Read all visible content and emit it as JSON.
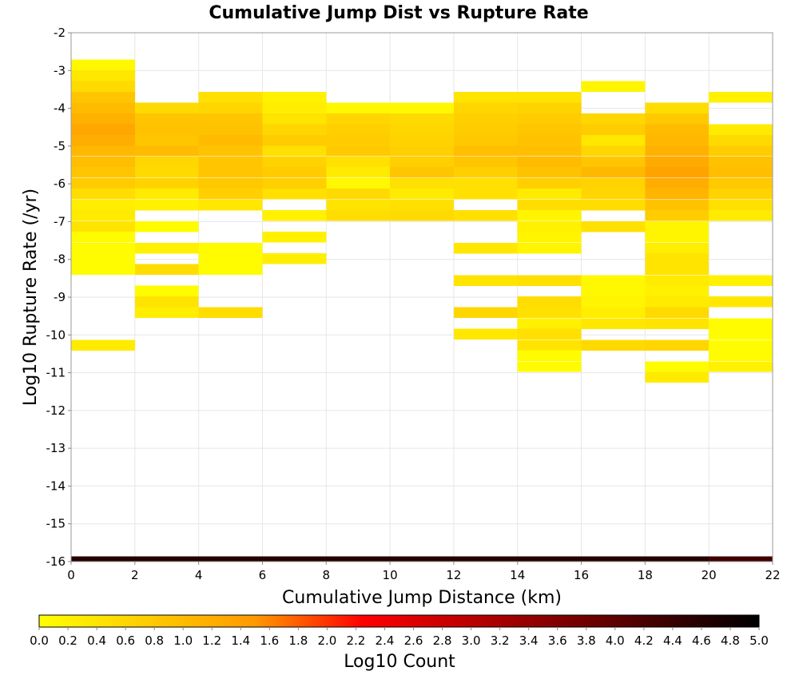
{
  "chart_data": {
    "type": "heatmap",
    "title": "Cumulative Jump Dist vs Rupture Rate",
    "xlabel": "Cumulative Jump Distance (km)",
    "ylabel": "Log10 Rupture Rate (/yr)",
    "xlim": [
      0,
      22
    ],
    "ylim": [
      -16,
      -2
    ],
    "x_ticks": [
      "0",
      "2",
      "4",
      "6",
      "8",
      "10",
      "12",
      "14",
      "16",
      "18",
      "20",
      "22"
    ],
    "y_ticks": [
      "-2",
      "-3",
      "-4",
      "-5",
      "-6",
      "-7",
      "-8",
      "-9",
      "-10",
      "-11",
      "-12",
      "-13",
      "-14",
      "-15",
      "-16"
    ],
    "x_bin_width": 2,
    "y_bin_height": 0.285,
    "grid": true,
    "colorbar": {
      "label": "Log10 Count",
      "range": [
        0,
        5
      ],
      "ticks": [
        "0.0",
        "0.2",
        "0.4",
        "0.6",
        "0.8",
        "1.0",
        "1.2",
        "1.4",
        "1.6",
        "1.8",
        "2.0",
        "2.2",
        "2.4",
        "2.6",
        "2.8",
        "3.0",
        "3.2",
        "3.4",
        "3.6",
        "3.8",
        "4.0",
        "4.2",
        "4.4",
        "4.6",
        "4.8",
        "5.0"
      ],
      "colors": [
        "#ffff00",
        "#ff9900",
        "#ff0000",
        "#000000"
      ]
    },
    "columns": [
      {
        "x": 0,
        "cells": [
          [
            -2.85,
            0.1
          ],
          [
            -3.14,
            0.35
          ],
          [
            -3.42,
            0.55
          ],
          [
            -3.71,
            0.85
          ],
          [
            -3.99,
            1.0
          ],
          [
            -4.28,
            1.15
          ],
          [
            -4.56,
            1.3
          ],
          [
            -4.85,
            1.2
          ],
          [
            -5.13,
            1.05
          ],
          [
            -5.42,
            0.95
          ],
          [
            -5.7,
            0.85
          ],
          [
            -5.99,
            0.75
          ],
          [
            -6.27,
            0.5
          ],
          [
            -6.56,
            0.25
          ],
          [
            -6.84,
            0.3
          ],
          [
            -7.13,
            0.4
          ],
          [
            -7.41,
            0.05
          ],
          [
            -7.7,
            0.05
          ],
          [
            -7.98,
            0.05
          ],
          [
            -8.27,
            0.05
          ],
          [
            -10.27,
            0.3
          ]
        ]
      },
      {
        "x": 2,
        "cells": [
          [
            -3.99,
            0.55
          ],
          [
            -4.28,
            0.85
          ],
          [
            -4.56,
            0.9
          ],
          [
            -4.85,
            0.85
          ],
          [
            -5.13,
            1.0
          ],
          [
            -5.42,
            0.6
          ],
          [
            -5.7,
            0.55
          ],
          [
            -5.99,
            0.65
          ],
          [
            -6.27,
            0.3
          ],
          [
            -6.56,
            0.2
          ],
          [
            -7.13,
            0.05
          ],
          [
            -7.7,
            0.2
          ],
          [
            -8.27,
            0.5
          ],
          [
            -8.84,
            0.05
          ],
          [
            -9.12,
            0.4
          ],
          [
            -9.41,
            0.25
          ]
        ]
      },
      {
        "x": 4,
        "cells": [
          [
            -3.71,
            0.45
          ],
          [
            -3.99,
            0.6
          ],
          [
            -4.28,
            0.85
          ],
          [
            -4.56,
            0.9
          ],
          [
            -4.85,
            1.0
          ],
          [
            -5.13,
            0.9
          ],
          [
            -5.42,
            0.85
          ],
          [
            -5.7,
            0.85
          ],
          [
            -5.99,
            0.8
          ],
          [
            -6.27,
            0.7
          ],
          [
            -6.56,
            0.35
          ],
          [
            -7.7,
            0.05
          ],
          [
            -7.98,
            0.05
          ],
          [
            -8.27,
            0.05
          ],
          [
            -9.41,
            0.5
          ]
        ]
      },
      {
        "x": 6,
        "cells": [
          [
            -3.71,
            0.2
          ],
          [
            -3.99,
            0.25
          ],
          [
            -4.28,
            0.4
          ],
          [
            -4.56,
            0.6
          ],
          [
            -4.85,
            0.75
          ],
          [
            -5.13,
            0.45
          ],
          [
            -5.42,
            0.65
          ],
          [
            -5.7,
            0.75
          ],
          [
            -5.99,
            0.7
          ],
          [
            -6.27,
            0.45
          ],
          [
            -6.84,
            0.2
          ],
          [
            -7.41,
            0.2
          ],
          [
            -7.98,
            0.25
          ]
        ]
      },
      {
        "x": 8,
        "cells": [
          [
            -3.99,
            0.1
          ],
          [
            -4.28,
            0.6
          ],
          [
            -4.56,
            0.7
          ],
          [
            -4.85,
            0.75
          ],
          [
            -5.13,
            0.8
          ],
          [
            -5.42,
            0.45
          ],
          [
            -5.7,
            0.3
          ],
          [
            -5.99,
            0.1
          ],
          [
            -6.27,
            0.55
          ],
          [
            -6.56,
            0.4
          ],
          [
            -6.84,
            0.5
          ]
        ]
      },
      {
        "x": 10,
        "cells": [
          [
            -3.99,
            0.1
          ],
          [
            -4.28,
            0.55
          ],
          [
            -4.56,
            0.6
          ],
          [
            -4.85,
            0.65
          ],
          [
            -5.13,
            0.7
          ],
          [
            -5.42,
            0.7
          ],
          [
            -5.7,
            0.85
          ],
          [
            -5.99,
            0.45
          ],
          [
            -6.27,
            0.3
          ],
          [
            -6.56,
            0.45
          ],
          [
            -6.84,
            0.55
          ]
        ]
      },
      {
        "x": 12,
        "cells": [
          [
            -3.71,
            0.4
          ],
          [
            -3.99,
            0.6
          ],
          [
            -4.28,
            0.7
          ],
          [
            -4.56,
            0.75
          ],
          [
            -4.85,
            0.8
          ],
          [
            -5.13,
            0.95
          ],
          [
            -5.42,
            0.85
          ],
          [
            -5.7,
            0.7
          ],
          [
            -5.99,
            0.45
          ],
          [
            -6.27,
            0.45
          ],
          [
            -6.84,
            0.45
          ],
          [
            -7.7,
            0.35
          ],
          [
            -8.56,
            0.4
          ],
          [
            -9.41,
            0.6
          ],
          [
            -9.98,
            0.35
          ]
        ]
      },
      {
        "x": 14,
        "cells": [
          [
            -3.71,
            0.4
          ],
          [
            -3.99,
            0.65
          ],
          [
            -4.28,
            0.75
          ],
          [
            -4.56,
            0.85
          ],
          [
            -4.85,
            0.9
          ],
          [
            -5.13,
            0.95
          ],
          [
            -5.42,
            1.0
          ],
          [
            -5.7,
            0.9
          ],
          [
            -5.99,
            0.7
          ],
          [
            -6.27,
            0.3
          ],
          [
            -6.56,
            0.5
          ],
          [
            -6.84,
            0.15
          ],
          [
            -7.13,
            0.2
          ],
          [
            -7.41,
            0.15
          ],
          [
            -7.7,
            0.15
          ],
          [
            -8.56,
            0.45
          ],
          [
            -9.12,
            0.5
          ],
          [
            -9.41,
            0.45
          ],
          [
            -9.7,
            0.2
          ],
          [
            -9.98,
            0.45
          ],
          [
            -10.27,
            0.4
          ],
          [
            -10.55,
            0.05
          ],
          [
            -10.84,
            0.05
          ]
        ]
      },
      {
        "x": 16,
        "cells": [
          [
            -3.42,
            0.15
          ],
          [
            -4.28,
            0.6
          ],
          [
            -4.56,
            0.75
          ],
          [
            -4.85,
            0.35
          ],
          [
            -5.13,
            0.6
          ],
          [
            -5.42,
            0.85
          ],
          [
            -5.7,
            1.05
          ],
          [
            -5.99,
            0.65
          ],
          [
            -6.27,
            0.6
          ],
          [
            -6.56,
            0.5
          ],
          [
            -7.13,
            0.45
          ],
          [
            -8.56,
            0.1
          ],
          [
            -8.84,
            0.1
          ],
          [
            -9.12,
            0.15
          ],
          [
            -9.41,
            0.25
          ],
          [
            -9.7,
            0.35
          ],
          [
            -10.27,
            0.55
          ]
        ]
      },
      {
        "x": 18,
        "cells": [
          [
            -3.99,
            0.5
          ],
          [
            -4.28,
            0.8
          ],
          [
            -4.56,
            1.0
          ],
          [
            -4.85,
            1.05
          ],
          [
            -5.13,
            1.15
          ],
          [
            -5.42,
            1.25
          ],
          [
            -5.7,
            1.35
          ],
          [
            -5.99,
            1.2
          ],
          [
            -6.27,
            1.1
          ],
          [
            -6.56,
            0.9
          ],
          [
            -6.84,
            0.75
          ],
          [
            -7.13,
            0.15
          ],
          [
            -7.41,
            0.15
          ],
          [
            -7.7,
            0.25
          ],
          [
            -7.98,
            0.4
          ],
          [
            -8.27,
            0.4
          ],
          [
            -8.56,
            0.3
          ],
          [
            -8.84,
            0.2
          ],
          [
            -9.12,
            0.3
          ],
          [
            -9.41,
            0.55
          ],
          [
            -9.7,
            0.4
          ],
          [
            -10.27,
            0.6
          ],
          [
            -10.84,
            0.05
          ],
          [
            -11.12,
            0.3
          ]
        ]
      },
      {
        "x": 20,
        "cells": [
          [
            -3.71,
            0.2
          ],
          [
            -4.56,
            0.3
          ],
          [
            -4.85,
            0.55
          ],
          [
            -5.13,
            0.75
          ],
          [
            -5.42,
            0.9
          ],
          [
            -5.7,
            0.95
          ],
          [
            -5.99,
            0.8
          ],
          [
            -6.27,
            0.65
          ],
          [
            -6.56,
            0.45
          ],
          [
            -6.84,
            0.3
          ],
          [
            -8.56,
            0.2
          ],
          [
            -9.12,
            0.35
          ],
          [
            -9.7,
            0.05
          ],
          [
            -9.98,
            0.05
          ],
          [
            -10.27,
            0.05
          ],
          [
            -10.55,
            0.05
          ],
          [
            -10.84,
            0.2
          ]
        ]
      }
    ],
    "bottom_row": {
      "y": -16,
      "values": [
        4.6,
        4.6,
        4.6,
        4.6,
        4.6,
        4.6,
        4.6,
        4.6,
        4.6,
        4.6,
        4.3
      ]
    }
  }
}
